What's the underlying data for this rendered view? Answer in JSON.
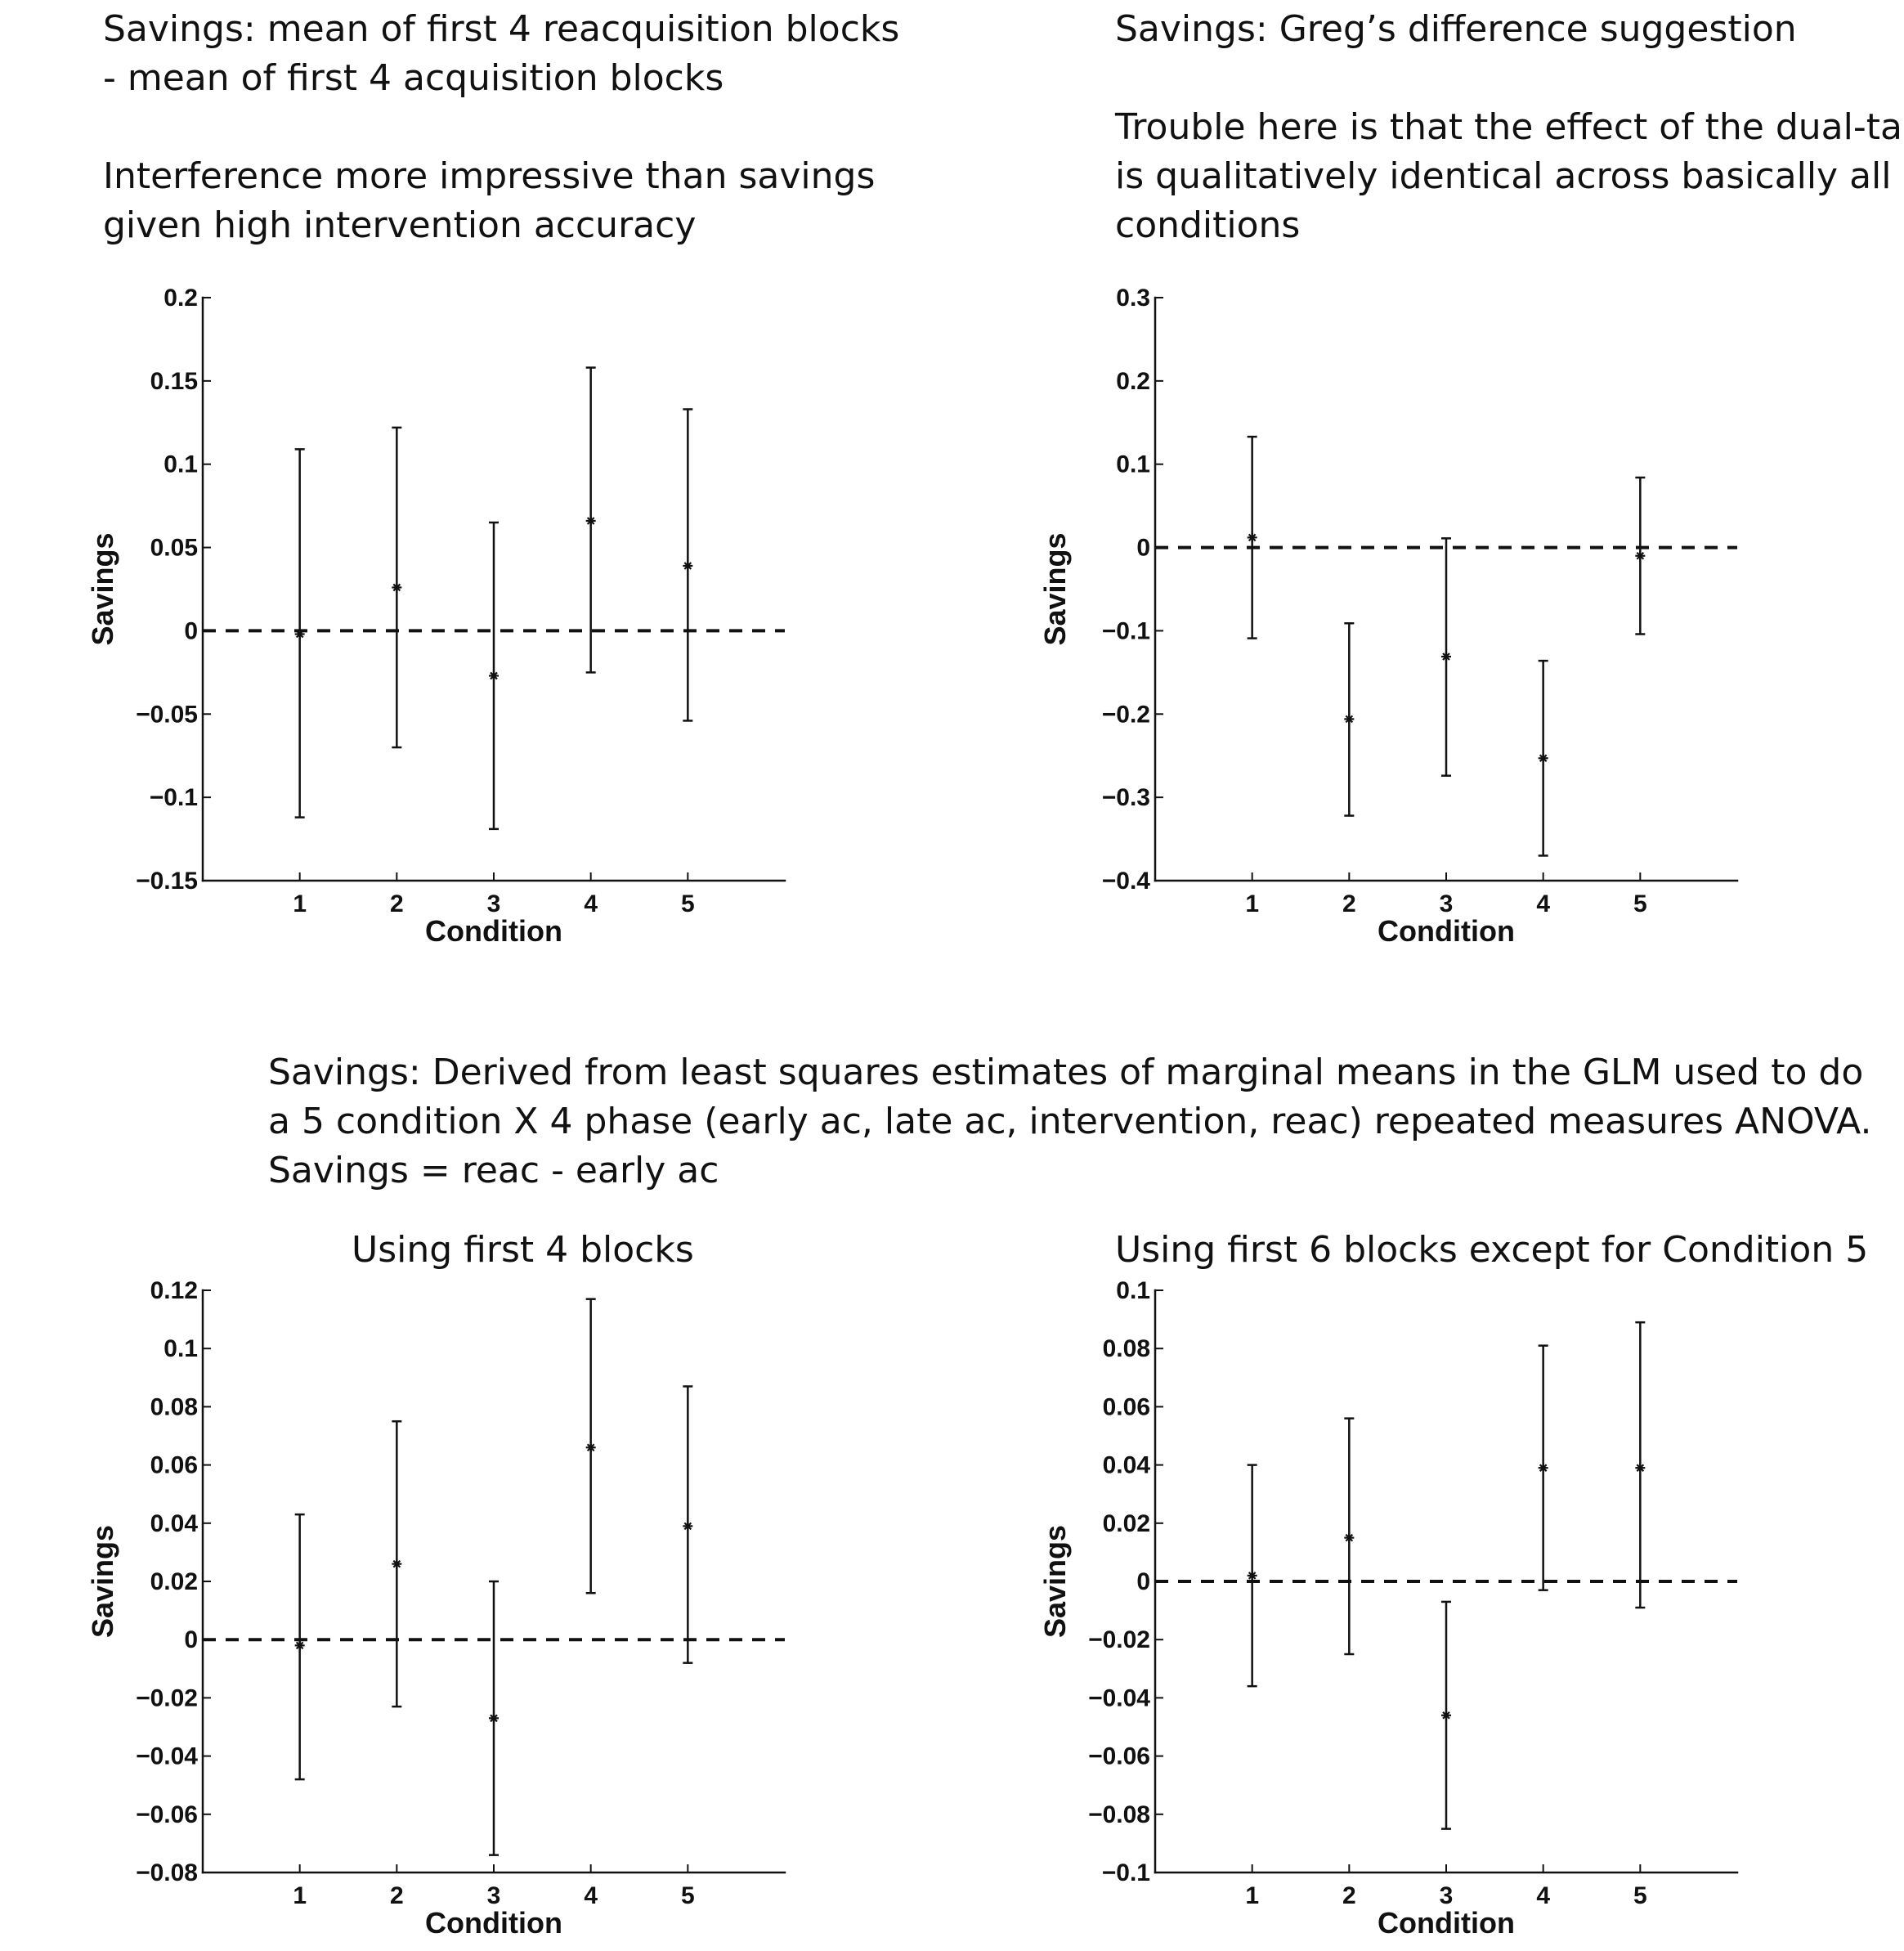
{
  "notes": {
    "top_left": {
      "line1": "Savings: mean of first 4 reacquisition blocks",
      "line2": "- mean of first 4 acquisition blocks",
      "line3": "Interference more impressive than savings",
      "line4": "given high intervention accuracy"
    },
    "top_right": {
      "line1": "Savings: Greg’s difference suggestion",
      "line2": "Trouble here is that the effect of the dual-task",
      "line3": "is qualitatively identical across basically all",
      "line4": "conditions"
    },
    "middle": {
      "line1": "Savings: Derived from least squares estimates of marginal means in the GLM used to do",
      "line2": "a 5 condition X 4 phase (early ac, late ac, intervention, reac) repeated measures ANOVA.",
      "line3": "Savings = reac - early ac"
    },
    "bottom_left_caption": "Using first 4 blocks",
    "bottom_right_caption": "Using first 6 blocks except for Condition 5"
  },
  "chart_data": [
    {
      "type": "scatter",
      "error_bars": true,
      "xlabel": "Condition",
      "ylabel": "Savings",
      "xlim": [
        0,
        6
      ],
      "ylim": [
        -0.15,
        0.2
      ],
      "xticks": [
        1,
        2,
        3,
        4,
        5
      ],
      "xtick_labels": [
        "1",
        "2",
        "3",
        "4",
        "5"
      ],
      "yticks": [
        -0.15,
        -0.1,
        -0.05,
        0,
        0.05,
        0.1,
        0.15,
        0.2
      ],
      "ytick_labels": [
        "−0.15",
        "−0.1",
        "−0.05",
        "0",
        "0.05",
        "0.1",
        "0.15",
        "0.2"
      ],
      "reference_line": 0,
      "x": [
        1,
        2,
        3,
        4,
        5
      ],
      "y": [
        -0.002,
        0.026,
        -0.027,
        0.066,
        0.039
      ],
      "err_low": [
        -0.112,
        -0.07,
        -0.119,
        -0.025,
        -0.054
      ],
      "err_high": [
        0.109,
        0.122,
        0.065,
        0.158,
        0.133
      ]
    },
    {
      "type": "scatter",
      "error_bars": true,
      "xlabel": "Condition",
      "ylabel": "Savings",
      "xlim": [
        0,
        6
      ],
      "ylim": [
        -0.4,
        0.3
      ],
      "xticks": [
        1,
        2,
        3,
        4,
        5
      ],
      "xtick_labels": [
        "1",
        "2",
        "3",
        "4",
        "5"
      ],
      "yticks": [
        -0.4,
        -0.3,
        -0.2,
        -0.1,
        0,
        0.1,
        0.2,
        0.3
      ],
      "ytick_labels": [
        "−0.4",
        "−0.3",
        "−0.2",
        "−0.1",
        "0",
        "0.1",
        "0.2",
        "0.3"
      ],
      "reference_line": 0,
      "x": [
        1,
        2,
        3,
        4,
        5
      ],
      "y": [
        0.012,
        -0.206,
        -0.131,
        -0.253,
        -0.01
      ],
      "err_low": [
        -0.109,
        -0.322,
        -0.274,
        -0.37,
        -0.104
      ],
      "err_high": [
        0.133,
        -0.091,
        0.011,
        -0.136,
        0.084
      ]
    },
    {
      "type": "scatter",
      "error_bars": true,
      "xlabel": "Condition",
      "ylabel": "Savings",
      "xlim": [
        0,
        6
      ],
      "ylim": [
        -0.08,
        0.12
      ],
      "xticks": [
        1,
        2,
        3,
        4,
        5
      ],
      "xtick_labels": [
        "1",
        "2",
        "3",
        "4",
        "5"
      ],
      "yticks": [
        -0.08,
        -0.06,
        -0.04,
        -0.02,
        0,
        0.02,
        0.04,
        0.06,
        0.08,
        0.1,
        0.12
      ],
      "ytick_labels": [
        "−0.08",
        "−0.06",
        "−0.04",
        "−0.02",
        "0",
        "0.02",
        "0.04",
        "0.06",
        "0.08",
        "0.1",
        "0.12"
      ],
      "reference_line": 0,
      "x": [
        1,
        2,
        3,
        4,
        5
      ],
      "y": [
        -0.002,
        0.026,
        -0.027,
        0.066,
        0.039
      ],
      "err_low": [
        -0.048,
        -0.023,
        -0.074,
        0.016,
        -0.008
      ],
      "err_high": [
        0.043,
        0.075,
        0.02,
        0.117,
        0.087
      ]
    },
    {
      "type": "scatter",
      "error_bars": true,
      "xlabel": "Condition",
      "ylabel": "Savings",
      "xlim": [
        0,
        6
      ],
      "ylim": [
        -0.1,
        0.1
      ],
      "xticks": [
        1,
        2,
        3,
        4,
        5
      ],
      "xtick_labels": [
        "1",
        "2",
        "3",
        "4",
        "5"
      ],
      "yticks": [
        -0.1,
        -0.08,
        -0.06,
        -0.04,
        -0.02,
        0,
        0.02,
        0.04,
        0.06,
        0.08,
        0.1
      ],
      "ytick_labels": [
        "−0.1",
        "−0.08",
        "−0.06",
        "−0.04",
        "−0.02",
        "0",
        "0.02",
        "0.04",
        "0.06",
        "0.08",
        "0.1"
      ],
      "reference_line": 0,
      "x": [
        1,
        2,
        3,
        4,
        5
      ],
      "y": [
        0.002,
        0.015,
        -0.046,
        0.039,
        0.039
      ],
      "err_low": [
        -0.036,
        -0.025,
        -0.085,
        -0.003,
        -0.009
      ],
      "err_high": [
        0.04,
        0.056,
        -0.007,
        0.081,
        0.089
      ]
    }
  ]
}
